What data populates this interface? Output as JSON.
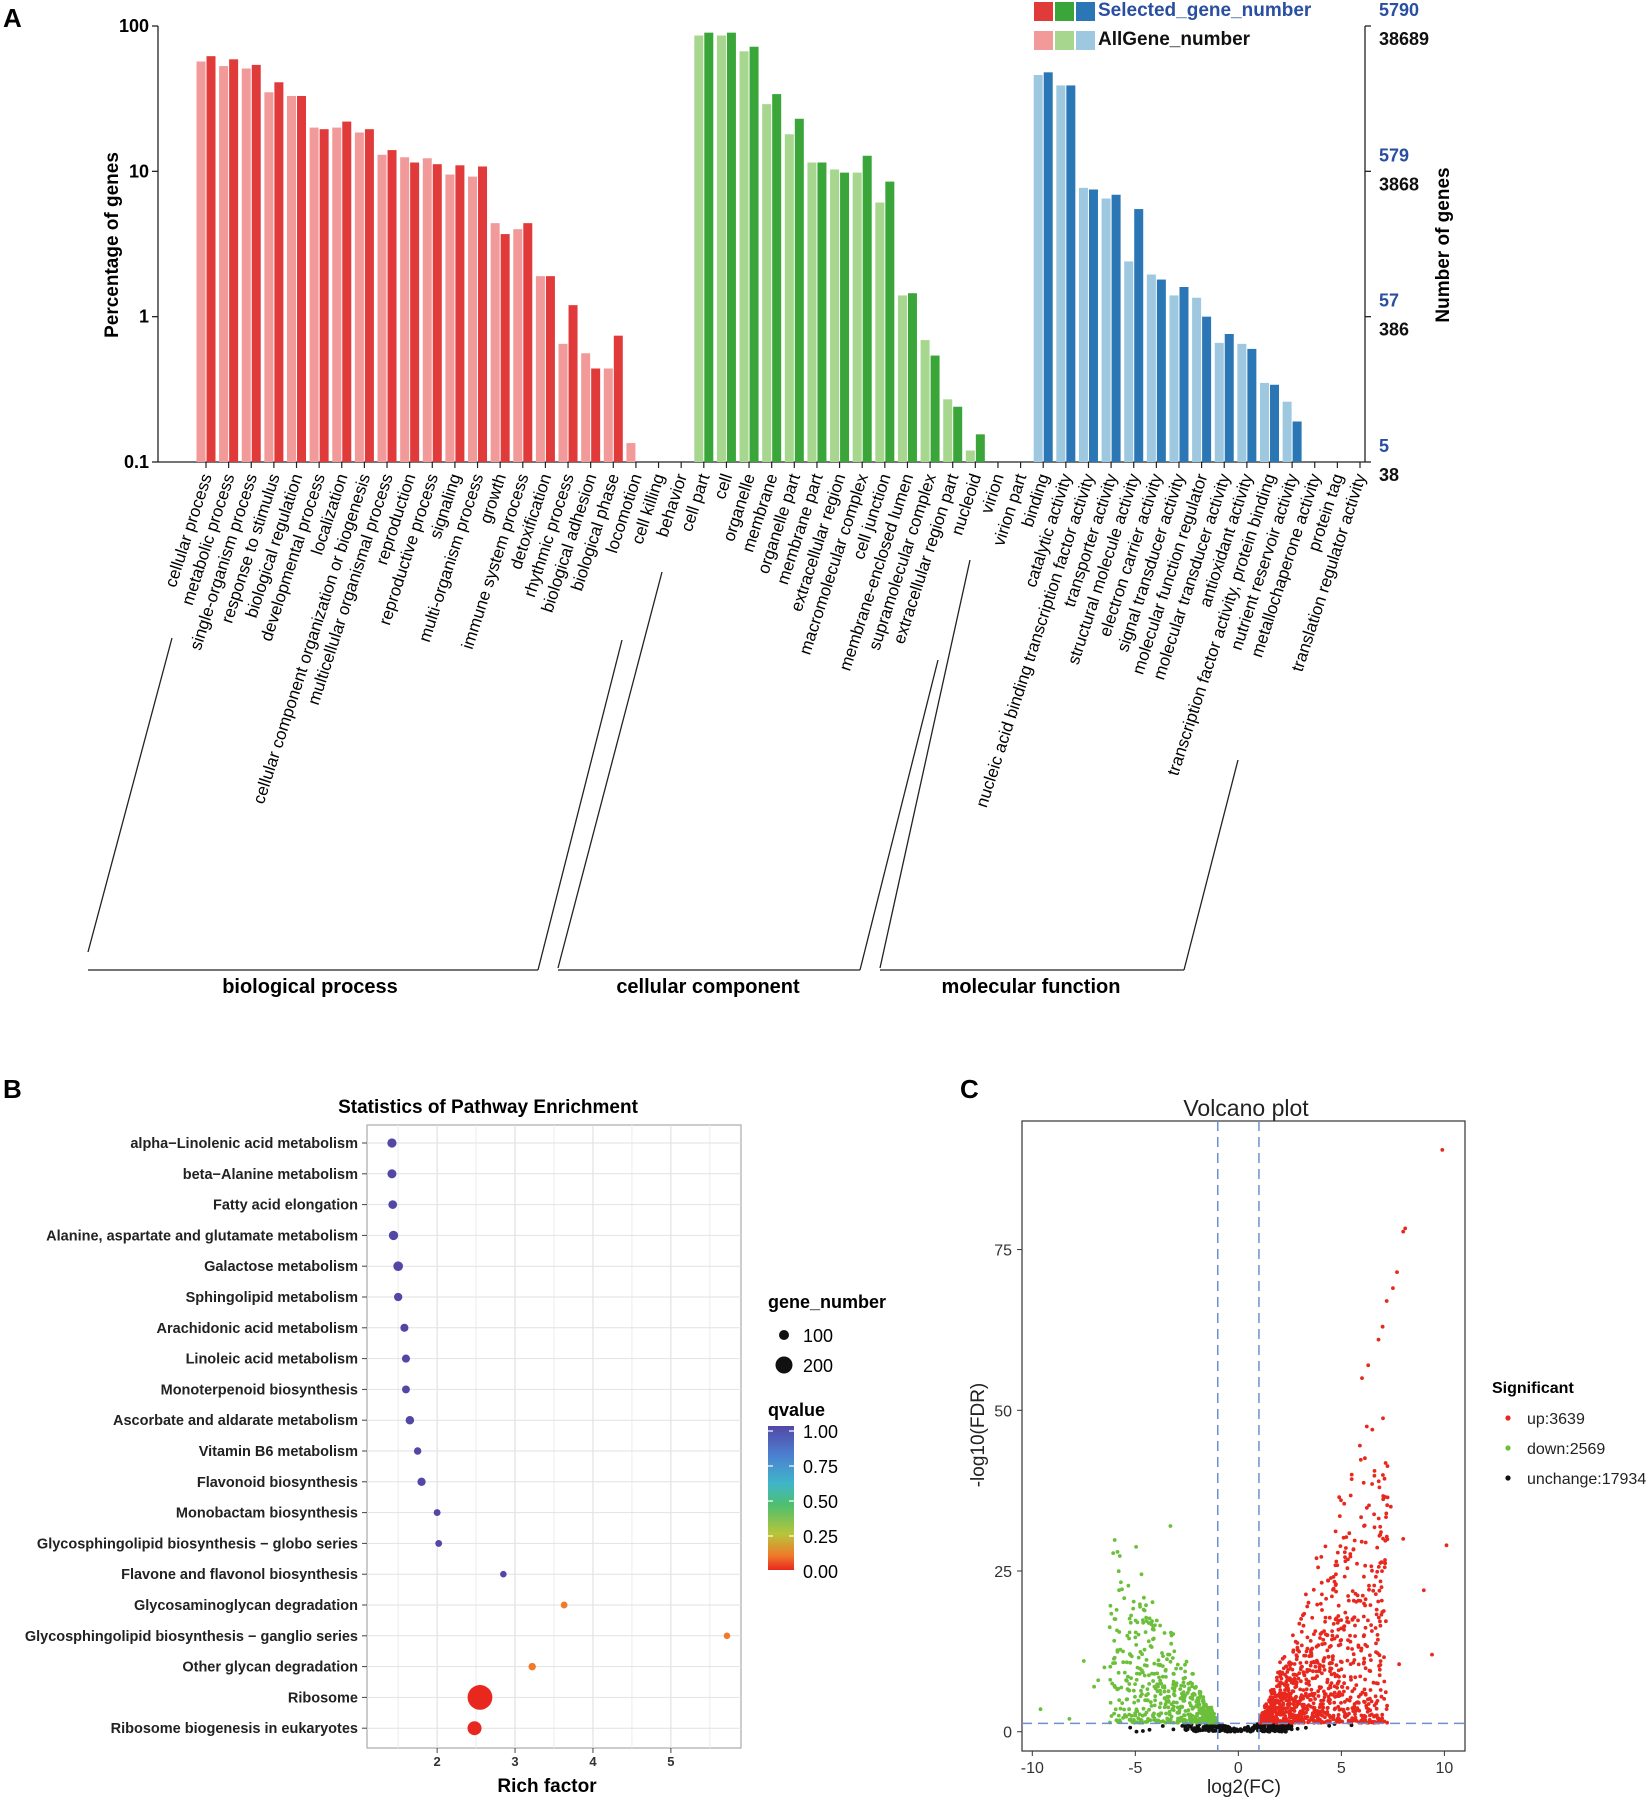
{
  "panels": {
    "a": "A",
    "b": "B",
    "c": "C"
  },
  "colors": {
    "bp_selected": "#e03a3a",
    "bp_all": "#f29a9a",
    "cc_selected": "#3aa63a",
    "cc_all": "#a7d78f",
    "mf_selected": "#2b76b4",
    "mf_all": "#9dc8e0",
    "volcano_up": "#e8281e",
    "volcano_down": "#6cbf3a",
    "volcano_unchange": "#111111",
    "legend_blue_text": "#2a4fa0"
  },
  "chart_data": [
    {
      "id": "go",
      "type": "bar",
      "ylabel_left": "Percentage of genes",
      "ylabel_right": "Number of genes",
      "yscale": "log",
      "ylim": [
        0.1,
        100
      ],
      "left_ticks": [
        "0.1",
        "1",
        "10",
        "100"
      ],
      "right_ticks_selected": [
        "5",
        "57",
        "579",
        "5790"
      ],
      "right_ticks_all": [
        "38",
        "386",
        "3868",
        "38689"
      ],
      "legend": [
        "Selected_gene_number",
        "AllGene_number"
      ],
      "groups": [
        {
          "name": "biological process",
          "color_key": "bp"
        },
        {
          "name": "cellular component",
          "color_key": "cc"
        },
        {
          "name": "molecular function",
          "color_key": "mf"
        }
      ],
      "categories": [
        {
          "label": "cellular process",
          "group": 0,
          "all": 57,
          "selected": 62
        },
        {
          "label": "metabolic process",
          "group": 0,
          "all": 53,
          "selected": 59
        },
        {
          "label": "single-organism process",
          "group": 0,
          "all": 51,
          "selected": 54
        },
        {
          "label": "response to stimulus",
          "group": 0,
          "all": 35,
          "selected": 41
        },
        {
          "label": "biological regulation",
          "group": 0,
          "all": 33,
          "selected": 33
        },
        {
          "label": "developmental process",
          "group": 0,
          "all": 20,
          "selected": 19.5
        },
        {
          "label": "localization",
          "group": 0,
          "all": 20,
          "selected": 22
        },
        {
          "label": "cellular component organization or biogenesis",
          "group": 0,
          "all": 18.5,
          "selected": 19.5
        },
        {
          "label": "multicellular organismal process",
          "group": 0,
          "all": 13,
          "selected": 14
        },
        {
          "label": "reproduction",
          "group": 0,
          "all": 12.5,
          "selected": 11.5
        },
        {
          "label": "reproductive process",
          "group": 0,
          "all": 12.3,
          "selected": 11.2
        },
        {
          "label": "signaling",
          "group": 0,
          "all": 9.5,
          "selected": 11
        },
        {
          "label": "multi-organism process",
          "group": 0,
          "all": 9.2,
          "selected": 10.8
        },
        {
          "label": "growth",
          "group": 0,
          "all": 4.4,
          "selected": 3.7
        },
        {
          "label": "immune system process",
          "group": 0,
          "all": 4,
          "selected": 4.4
        },
        {
          "label": "detoxification",
          "group": 0,
          "all": 1.9,
          "selected": 1.9
        },
        {
          "label": "rhythmic process",
          "group": 0,
          "all": 0.65,
          "selected": 1.2
        },
        {
          "label": "biological adhesion",
          "group": 0,
          "all": 0.56,
          "selected": 0.44
        },
        {
          "label": "biological phase",
          "group": 0,
          "all": 0.44,
          "selected": 0.74
        },
        {
          "label": "locomotion",
          "group": 0,
          "all": 0.135,
          "selected": null
        },
        {
          "label": "cell killing",
          "group": 0,
          "all": null,
          "selected": null
        },
        {
          "label": "behavior",
          "group": 0,
          "all": null,
          "selected": null
        },
        {
          "label": "cell part",
          "group": 1,
          "all": 86,
          "selected": 90
        },
        {
          "label": "cell",
          "group": 1,
          "all": 86,
          "selected": 90
        },
        {
          "label": "organelle",
          "group": 1,
          "all": 67,
          "selected": 72
        },
        {
          "label": "membrane",
          "group": 1,
          "all": 29,
          "selected": 34
        },
        {
          "label": "organelle part",
          "group": 1,
          "all": 18,
          "selected": 23
        },
        {
          "label": "membrane part",
          "group": 1,
          "all": 11.5,
          "selected": 11.5
        },
        {
          "label": "extracellular region",
          "group": 1,
          "all": 10.3,
          "selected": 9.8
        },
        {
          "label": "macromolecular complex",
          "group": 1,
          "all": 9.8,
          "selected": 12.8
        },
        {
          "label": "cell junction",
          "group": 1,
          "all": 6.1,
          "selected": 8.5
        },
        {
          "label": "membrane-enclosed lumen",
          "group": 1,
          "all": 1.4,
          "selected": 1.45
        },
        {
          "label": "supramolecular complex",
          "group": 1,
          "all": 0.69,
          "selected": 0.54
        },
        {
          "label": "extracellular region part",
          "group": 1,
          "all": 0.27,
          "selected": 0.24
        },
        {
          "label": "nucleoid",
          "group": 1,
          "all": 0.12,
          "selected": 0.155
        },
        {
          "label": "virion",
          "group": 1,
          "all": null,
          "selected": null
        },
        {
          "label": "virion part",
          "group": 1,
          "all": null,
          "selected": null
        },
        {
          "label": "binding",
          "group": 2,
          "all": 46,
          "selected": 48
        },
        {
          "label": "catalytic activity",
          "group": 2,
          "all": 39,
          "selected": 39
        },
        {
          "label": "nucleic acid binding transcription factor activity",
          "group": 2,
          "all": 7.7,
          "selected": 7.5
        },
        {
          "label": "transporter activity",
          "group": 2,
          "all": 6.5,
          "selected": 6.9
        },
        {
          "label": "structural molecule activity",
          "group": 2,
          "all": 2.4,
          "selected": 5.5
        },
        {
          "label": "electron carrier activity",
          "group": 2,
          "all": 1.95,
          "selected": 1.8
        },
        {
          "label": "signal transducer activity",
          "group": 2,
          "all": 1.4,
          "selected": 1.6
        },
        {
          "label": "molecular function regulator",
          "group": 2,
          "all": 1.35,
          "selected": 1.0
        },
        {
          "label": "molecular transducer activity",
          "group": 2,
          "all": 0.66,
          "selected": 0.76
        },
        {
          "label": "antioxidant activity",
          "group": 2,
          "all": 0.65,
          "selected": 0.6
        },
        {
          "label": "transcription factor activity, protein binding",
          "group": 2,
          "all": 0.35,
          "selected": 0.34
        },
        {
          "label": "nutrient reservoir activity",
          "group": 2,
          "all": 0.26,
          "selected": 0.19
        },
        {
          "label": "metallochaperone activity",
          "group": 2,
          "all": null,
          "selected": null
        },
        {
          "label": "protein tag",
          "group": 2,
          "all": null,
          "selected": null
        },
        {
          "label": "translation regulator activity",
          "group": 2,
          "all": null,
          "selected": null
        }
      ]
    },
    {
      "id": "pathway",
      "type": "scatter",
      "title": "Statistics of Pathway Enrichment",
      "xlabel": "Rich factor",
      "xlim": [
        1.1,
        5.9
      ],
      "xticks": [
        2,
        3,
        4,
        5
      ],
      "size_legend_title": "gene_number",
      "size_legend": [
        100,
        200
      ],
      "color_legend_title": "qvalue",
      "color_legend_ticks": [
        "1.00",
        "0.75",
        "0.50",
        "0.25",
        "0.00"
      ],
      "points": [
        {
          "pathway": "alpha−Linolenic acid metabolism",
          "rich_factor": 1.42,
          "gene_number": 15,
          "qvalue": 1.0
        },
        {
          "pathway": "beta−Alanine metabolism",
          "rich_factor": 1.42,
          "gene_number": 14,
          "qvalue": 1.0
        },
        {
          "pathway": "Fatty acid elongation",
          "rich_factor": 1.43,
          "gene_number": 12,
          "qvalue": 1.0
        },
        {
          "pathway": "Alanine, aspartate and glutamate metabolism",
          "rich_factor": 1.44,
          "gene_number": 16,
          "qvalue": 1.0
        },
        {
          "pathway": "Galactose metabolism",
          "rich_factor": 1.5,
          "gene_number": 18,
          "qvalue": 1.0
        },
        {
          "pathway": "Sphingolipid metabolism",
          "rich_factor": 1.5,
          "gene_number": 10,
          "qvalue": 1.0
        },
        {
          "pathway": "Arachidonic acid metabolism",
          "rich_factor": 1.58,
          "gene_number": 9,
          "qvalue": 1.0
        },
        {
          "pathway": "Linoleic acid metabolism",
          "rich_factor": 1.6,
          "gene_number": 9,
          "qvalue": 1.0
        },
        {
          "pathway": "Monoterpenoid biosynthesis",
          "rich_factor": 1.6,
          "gene_number": 8,
          "qvalue": 1.0
        },
        {
          "pathway": "Ascorbate and aldarate metabolism",
          "rich_factor": 1.65,
          "gene_number": 11,
          "qvalue": 1.0
        },
        {
          "pathway": "Vitamin B6 metabolism",
          "rich_factor": 1.75,
          "gene_number": 6,
          "qvalue": 1.0
        },
        {
          "pathway": "Flavonoid biosynthesis",
          "rich_factor": 1.8,
          "gene_number": 10,
          "qvalue": 1.0
        },
        {
          "pathway": "Monobactam biosynthesis",
          "rich_factor": 2.0,
          "gene_number": 4,
          "qvalue": 1.0
        },
        {
          "pathway": "Glycosphingolipid biosynthesis − globo series",
          "rich_factor": 2.02,
          "gene_number": 4,
          "qvalue": 1.0
        },
        {
          "pathway": "Flavone and flavonol biosynthesis",
          "rich_factor": 2.85,
          "gene_number": 3,
          "qvalue": 1.0
        },
        {
          "pathway": "Glycosaminoglycan degradation",
          "rich_factor": 3.63,
          "gene_number": 4,
          "qvalue": 0.08
        },
        {
          "pathway": "Glycosphingolipid biosynthesis − ganglio series",
          "rich_factor": 5.72,
          "gene_number": 3,
          "qvalue": 0.05
        },
        {
          "pathway": "Other glycan degradation",
          "rich_factor": 3.22,
          "gene_number": 6,
          "qvalue": 0.05
        },
        {
          "pathway": "Ribosome",
          "rich_factor": 2.55,
          "gene_number": 270,
          "qvalue": 0.0
        },
        {
          "pathway": "Ribosome biogenesis in eukaryotes",
          "rich_factor": 2.48,
          "gene_number": 60,
          "qvalue": 0.0
        }
      ]
    },
    {
      "id": "volcano",
      "type": "scatter",
      "title": "Volcano plot",
      "xlabel": "log2(FC)",
      "ylabel": "-log10(FDR)",
      "xlim": [
        -10.5,
        11.0
      ],
      "ylim": [
        -3,
        95
      ],
      "xticks": [
        -10,
        -5,
        0,
        5,
        10
      ],
      "yticks": [
        0,
        25,
        50,
        75
      ],
      "fc_threshold": [
        -1,
        1
      ],
      "fdr_threshold": 1.3,
      "legend_title": "Significant",
      "legend": [
        {
          "label": "up:3639",
          "key": "up"
        },
        {
          "label": "down:2569",
          "key": "down"
        },
        {
          "label": "unchange:17934",
          "key": "unchange"
        }
      ],
      "highlight_points_up": [
        [
          9.9,
          90.5
        ],
        [
          8.1,
          78.3
        ],
        [
          8.0,
          77.8
        ],
        [
          7.7,
          71.5
        ],
        [
          7.5,
          69.0
        ],
        [
          7.2,
          67.0
        ],
        [
          7.0,
          63.0
        ],
        [
          6.8,
          61.0
        ],
        [
          6.3,
          57.0
        ],
        [
          6.0,
          55.0
        ],
        [
          10.1,
          29.0
        ],
        [
          7.4,
          35.0
        ],
        [
          8.0,
          30.0
        ],
        [
          9.0,
          22.0
        ],
        [
          7.8,
          10.5
        ],
        [
          6.5,
          47.0
        ],
        [
          5.9,
          44.5
        ],
        [
          5.5,
          40.0
        ],
        [
          6.1,
          32.0
        ],
        [
          9.4,
          12.0
        ]
      ]
    }
  ]
}
